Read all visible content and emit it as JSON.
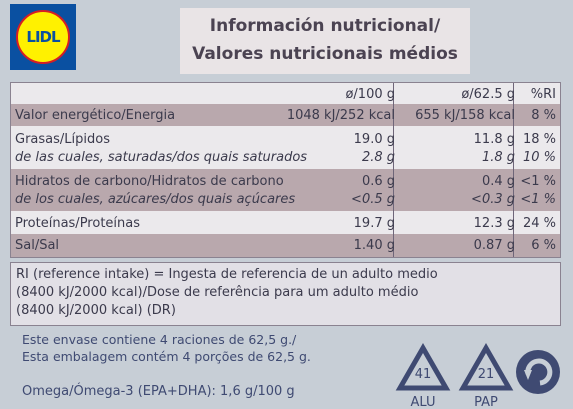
{
  "logo": "LIDL",
  "header": {
    "title": "Información nutricional/",
    "subtitle": "Valores nutricionais médios"
  },
  "table": {
    "columns": [
      "",
      "ø/100 g",
      "ø/62.5 g",
      "%RI"
    ],
    "rows": [
      [
        "Valor energético/Energia",
        "1048 kJ/252 kcal",
        "655 kJ/158 kcal",
        "8 %"
      ],
      [
        "Grasas/Lípidos",
        "19.0 g",
        "11.8 g",
        "18 %"
      ],
      [
        "de las cuales, saturadas/dos quais saturados",
        "2.8 g",
        "1.8 g",
        "10 %"
      ],
      [
        "Hidratos de carbono/Hidratos de carbono",
        "0.6 g",
        "0.4 g",
        "<1 %"
      ],
      [
        "de los cuales, azúcares/dos quais açúcares",
        "<0.5 g",
        "<0.3 g",
        "<1 %"
      ],
      [
        "Proteínas/Proteínas",
        "19.7 g",
        "12.3 g",
        "24 %"
      ],
      [
        "Sal/Sal",
        "1.40 g",
        "0.87 g",
        "6 %"
      ]
    ]
  },
  "footnote": [
    "RI (reference intake) = Ingesta de referencia de un adulto medio",
    "(8400 kJ/2000 kcal)/Dose de referência para um adulto médio",
    "(8400 kJ/2000 kcal) (DR)"
  ],
  "servings": [
    "Este envase contiene 4 raciones de 62,5 g./",
    "Esta embalagem contém 4 porções de 62,5 g."
  ],
  "omega": "Omega/Ómega-3 (EPA+DHA): 1,6 g/100 g",
  "recycling": [
    {
      "code": "41",
      "material": "ALU"
    },
    {
      "code": "21",
      "material": "PAP"
    }
  ]
}
